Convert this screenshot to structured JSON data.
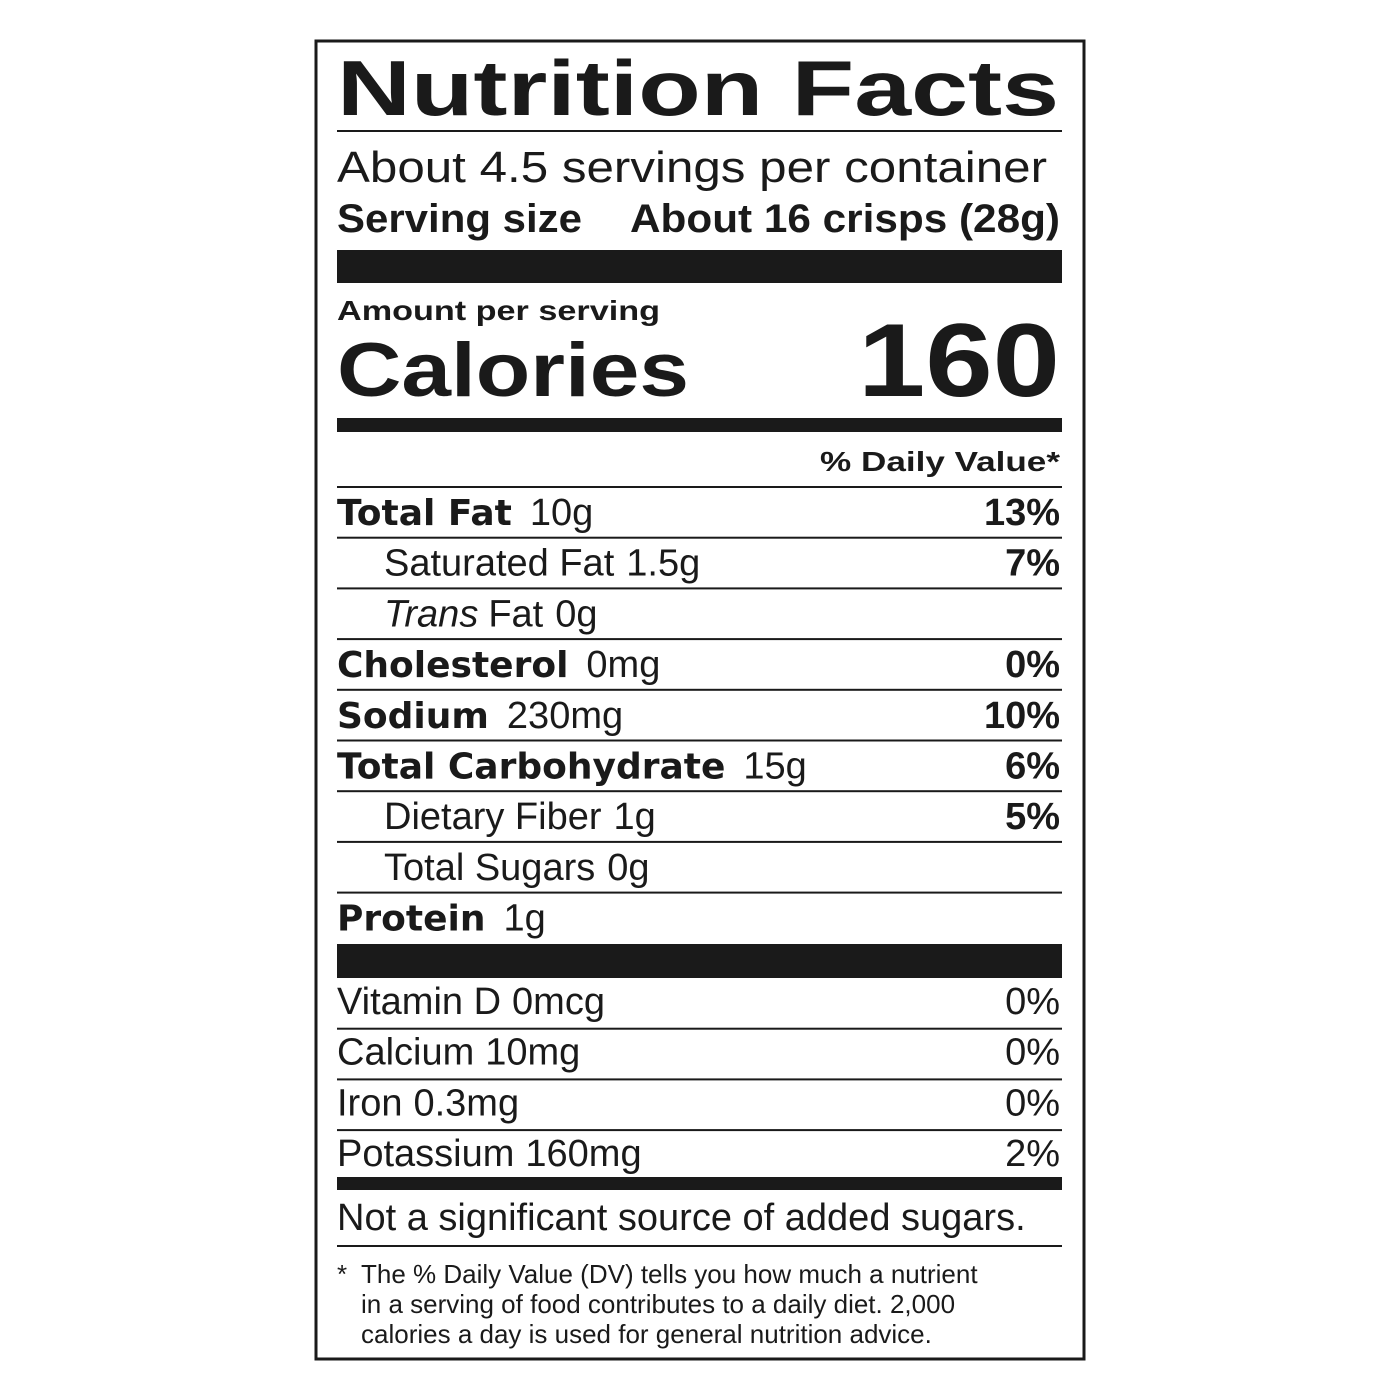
{
  "header": {
    "title": "Nutrition Facts",
    "servings": "About 4.5 servings per container",
    "serving_size_label": "Serving size",
    "serving_size_value": "About 16 crisps (28g)"
  },
  "calories": {
    "label": "Amount per serving",
    "name": "Calories",
    "value": "160"
  },
  "daily_value_header": "% Daily Value*",
  "nutrients": [
    {
      "name": "Total Fat",
      "amount": "10g",
      "dv": "13%",
      "bold": true,
      "indent": false
    },
    {
      "name": "Saturated Fat",
      "amount": "1.5g",
      "dv": "7%",
      "bold": false,
      "indent": true
    },
    {
      "name_italic": "Trans",
      "name": "Fat",
      "amount": "0g",
      "bold": false,
      "indent": true
    },
    {
      "name": "Cholesterol",
      "amount": "0mg",
      "dv": "0%",
      "bold": true,
      "indent": false
    },
    {
      "name": "Sodium",
      "amount": "230mg",
      "dv": "10%",
      "bold": true,
      "indent": false
    },
    {
      "name": "Total Carbohydrate",
      "amount": "15g",
      "dv": "6%",
      "bold": true,
      "indent": false
    },
    {
      "name": "Dietary Fiber",
      "amount": "1g",
      "dv": "5%",
      "bold": false,
      "indent": true
    },
    {
      "name": "Total Sugars",
      "amount": "0g",
      "bold": false,
      "indent": true
    },
    {
      "name": "Protein",
      "amount": "1g",
      "bold": true,
      "indent": false
    }
  ],
  "vitamins": [
    {
      "name": "Vitamin D",
      "amount": "0mcg",
      "dv": "0%"
    },
    {
      "name": "Calcium",
      "amount": "10mg",
      "dv": "0%"
    },
    {
      "name": "Iron",
      "amount": "0.3mg",
      "dv": "0%"
    },
    {
      "name": "Potassium",
      "amount": "160mg",
      "dv": "2%"
    }
  ],
  "added_sugars_note": "Not a significant source of added sugars.",
  "footnote": {
    "marker": "*",
    "lines": [
      "The % Daily Value (DV) tells you how much a nutrient",
      "in a serving of food contributes to a daily diet. 2,000",
      "calories a day is used for general nutrition advice."
    ]
  }
}
